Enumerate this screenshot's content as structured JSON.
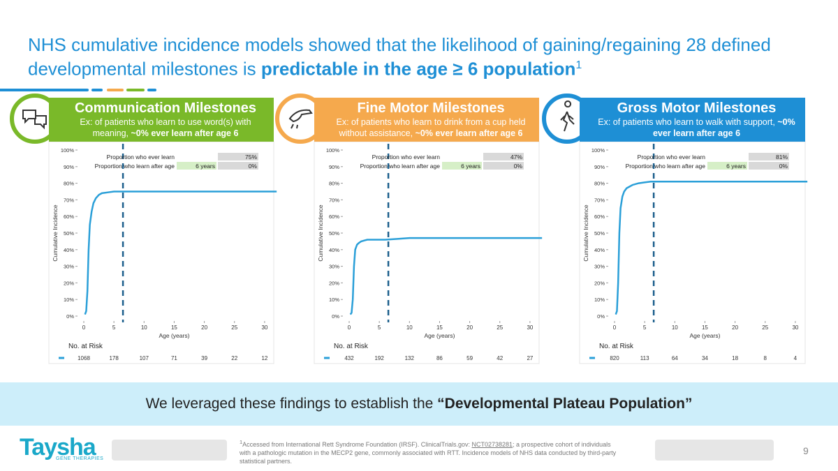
{
  "header": {
    "title_plain": "NHS cumulative incidence models showed that the likelihood of gaining/regaining 28 defined developmental milestones is",
    "title_bold": "predictable in the age ≥ 6 population",
    "title_sup": "1"
  },
  "panels": [
    {
      "title": "Communication Milestones",
      "desc": "Ex: of patients who learn to use word(s) with meaning,",
      "desc_bold": "~0% ever learn after age 6"
    },
    {
      "title": "Fine Motor Milestones",
      "desc": "Ex: of patients who learn to drink from a cup held without assistance,",
      "desc_bold": "~0% ever learn after age 6"
    },
    {
      "title": "Gross Motor Milestones",
      "desc": "Ex: of patients who learn to walk with support,",
      "desc_bold": "~0% ever learn after age 6"
    }
  ],
  "chart_data": [
    {
      "type": "line",
      "ylabel": "Cumulative Incidence",
      "xlabel": "Age (years)",
      "color": "#2a9fd8",
      "xlim": [
        -1,
        32
      ],
      "ylim": [
        0,
        100
      ],
      "xticks": [
        0,
        5,
        10,
        15,
        20,
        25,
        30
      ],
      "yticks": [
        {
          "value": 0,
          "label": "0%"
        },
        {
          "value": 10,
          "label": "10%"
        },
        {
          "value": 20,
          "label": "20%"
        },
        {
          "value": 30,
          "label": "30%"
        },
        {
          "value": 40,
          "label": "40%"
        },
        {
          "value": 50,
          "label": "50%"
        },
        {
          "value": 60,
          "label": "60%"
        },
        {
          "value": 70,
          "label": "70%"
        },
        {
          "value": 80,
          "label": "80%"
        },
        {
          "value": 90,
          "label": "90%"
        },
        {
          "value": 100,
          "label": "100%"
        }
      ],
      "vline": 6.5,
      "x": [
        0.2,
        0.4,
        0.6,
        0.8,
        1,
        1.3,
        1.6,
        2,
        2.5,
        3,
        4,
        5,
        6,
        8,
        10,
        15,
        20,
        25,
        30,
        32
      ],
      "values": [
        1,
        3,
        15,
        40,
        55,
        63,
        68,
        71,
        73,
        74,
        74.5,
        75,
        75,
        75,
        75,
        75,
        75,
        75,
        75,
        75
      ],
      "summary": {
        "ever_label": "Proportion who ever learn",
        "ever_value": "75%",
        "after_label": "Proportion who learn after age",
        "after_age": "6 years",
        "after_value": "0%"
      },
      "risk_label": "No. at Risk",
      "risk": [
        "1068",
        "178",
        "107",
        "71",
        "39",
        "22",
        "12"
      ]
    },
    {
      "type": "line",
      "ylabel": "Cumulative Incidence",
      "xlabel": "Age (years)",
      "color": "#2a9fd8",
      "xlim": [
        -1,
        32
      ],
      "ylim": [
        0,
        100
      ],
      "xticks": [
        0,
        5,
        10,
        15,
        20,
        25,
        30
      ],
      "yticks": [
        {
          "value": 0,
          "label": "0%"
        },
        {
          "value": 10,
          "label": "10%"
        },
        {
          "value": 20,
          "label": "20%"
        },
        {
          "value": 30,
          "label": "30%"
        },
        {
          "value": 40,
          "label": "40%"
        },
        {
          "value": 50,
          "label": "50%"
        },
        {
          "value": 60,
          "label": "60%"
        },
        {
          "value": 70,
          "label": "70%"
        },
        {
          "value": 80,
          "label": "80%"
        },
        {
          "value": 90,
          "label": "90%"
        },
        {
          "value": 100,
          "label": "100%"
        }
      ],
      "vline": 6.5,
      "x": [
        0.2,
        0.4,
        0.6,
        0.8,
        1,
        1.3,
        1.6,
        2,
        2.5,
        3,
        4,
        5,
        6,
        8,
        10,
        15,
        20,
        25,
        30,
        32
      ],
      "values": [
        1,
        2,
        10,
        30,
        40,
        43,
        44,
        45,
        45.5,
        46,
        46,
        46,
        46,
        46.5,
        47,
        47,
        47,
        47,
        47,
        47
      ],
      "summary": {
        "ever_label": "Proportion who ever learn",
        "ever_value": "47%",
        "after_label": "Proportion who learn after age",
        "after_age": "6 years",
        "after_value": "0%"
      },
      "risk_label": "No. at Risk",
      "risk": [
        "432",
        "192",
        "132",
        "86",
        "59",
        "42",
        "27"
      ]
    },
    {
      "type": "line",
      "ylabel": "Cumulative Incidence",
      "xlabel": "Age (years)",
      "color": "#2a9fd8",
      "xlim": [
        -1,
        32
      ],
      "ylim": [
        0,
        100
      ],
      "xticks": [
        0,
        5,
        10,
        15,
        20,
        25,
        30
      ],
      "yticks": [
        {
          "value": 0,
          "label": "0%"
        },
        {
          "value": 10,
          "label": "10%"
        },
        {
          "value": 20,
          "label": "20%"
        },
        {
          "value": 30,
          "label": "30%"
        },
        {
          "value": 40,
          "label": "40%"
        },
        {
          "value": 50,
          "label": "50%"
        },
        {
          "value": 60,
          "label": "60%"
        },
        {
          "value": 70,
          "label": "70%"
        },
        {
          "value": 80,
          "label": "80%"
        },
        {
          "value": 90,
          "label": "90%"
        },
        {
          "value": 100,
          "label": "100%"
        }
      ],
      "vline": 6.5,
      "x": [
        0.2,
        0.4,
        0.6,
        0.8,
        1,
        1.3,
        1.6,
        2,
        2.5,
        3,
        4,
        5,
        6,
        8,
        10,
        15,
        20,
        25,
        30,
        32
      ],
      "values": [
        1,
        3,
        20,
        50,
        65,
        72,
        75,
        77,
        78,
        79,
        80,
        80.5,
        81,
        81,
        81,
        81,
        81,
        81,
        81,
        81
      ],
      "summary": {
        "ever_label": "Proportion who ever learn",
        "ever_value": "81%",
        "after_label": "Proportion who learn after age",
        "after_age": "6 years",
        "after_value": "0%"
      },
      "risk_label": "No. at Risk",
      "risk": [
        "820",
        "113",
        "64",
        "34",
        "18",
        "8",
        "4"
      ]
    }
  ],
  "banner": {
    "text": "We leveraged these findings to establish the",
    "bold": "“Developmental Plateau Population”"
  },
  "footer": {
    "logo": "Taysha",
    "logo_tagline": "GENE THERAPIES",
    "footnote_sup": "1",
    "footnote_a": "Accessed from International Rett Syndrome Foundation (IRSF). ClinicalTrials.gov:",
    "footnote_link": "NCT02738281",
    "footnote_b": "; a prospective cohort of individuals with a pathologic mutation in the MECP2 gene, commonly associated with RTT. Incidence models of NHS data conducted by third-party statistical partners.",
    "page": "9"
  }
}
